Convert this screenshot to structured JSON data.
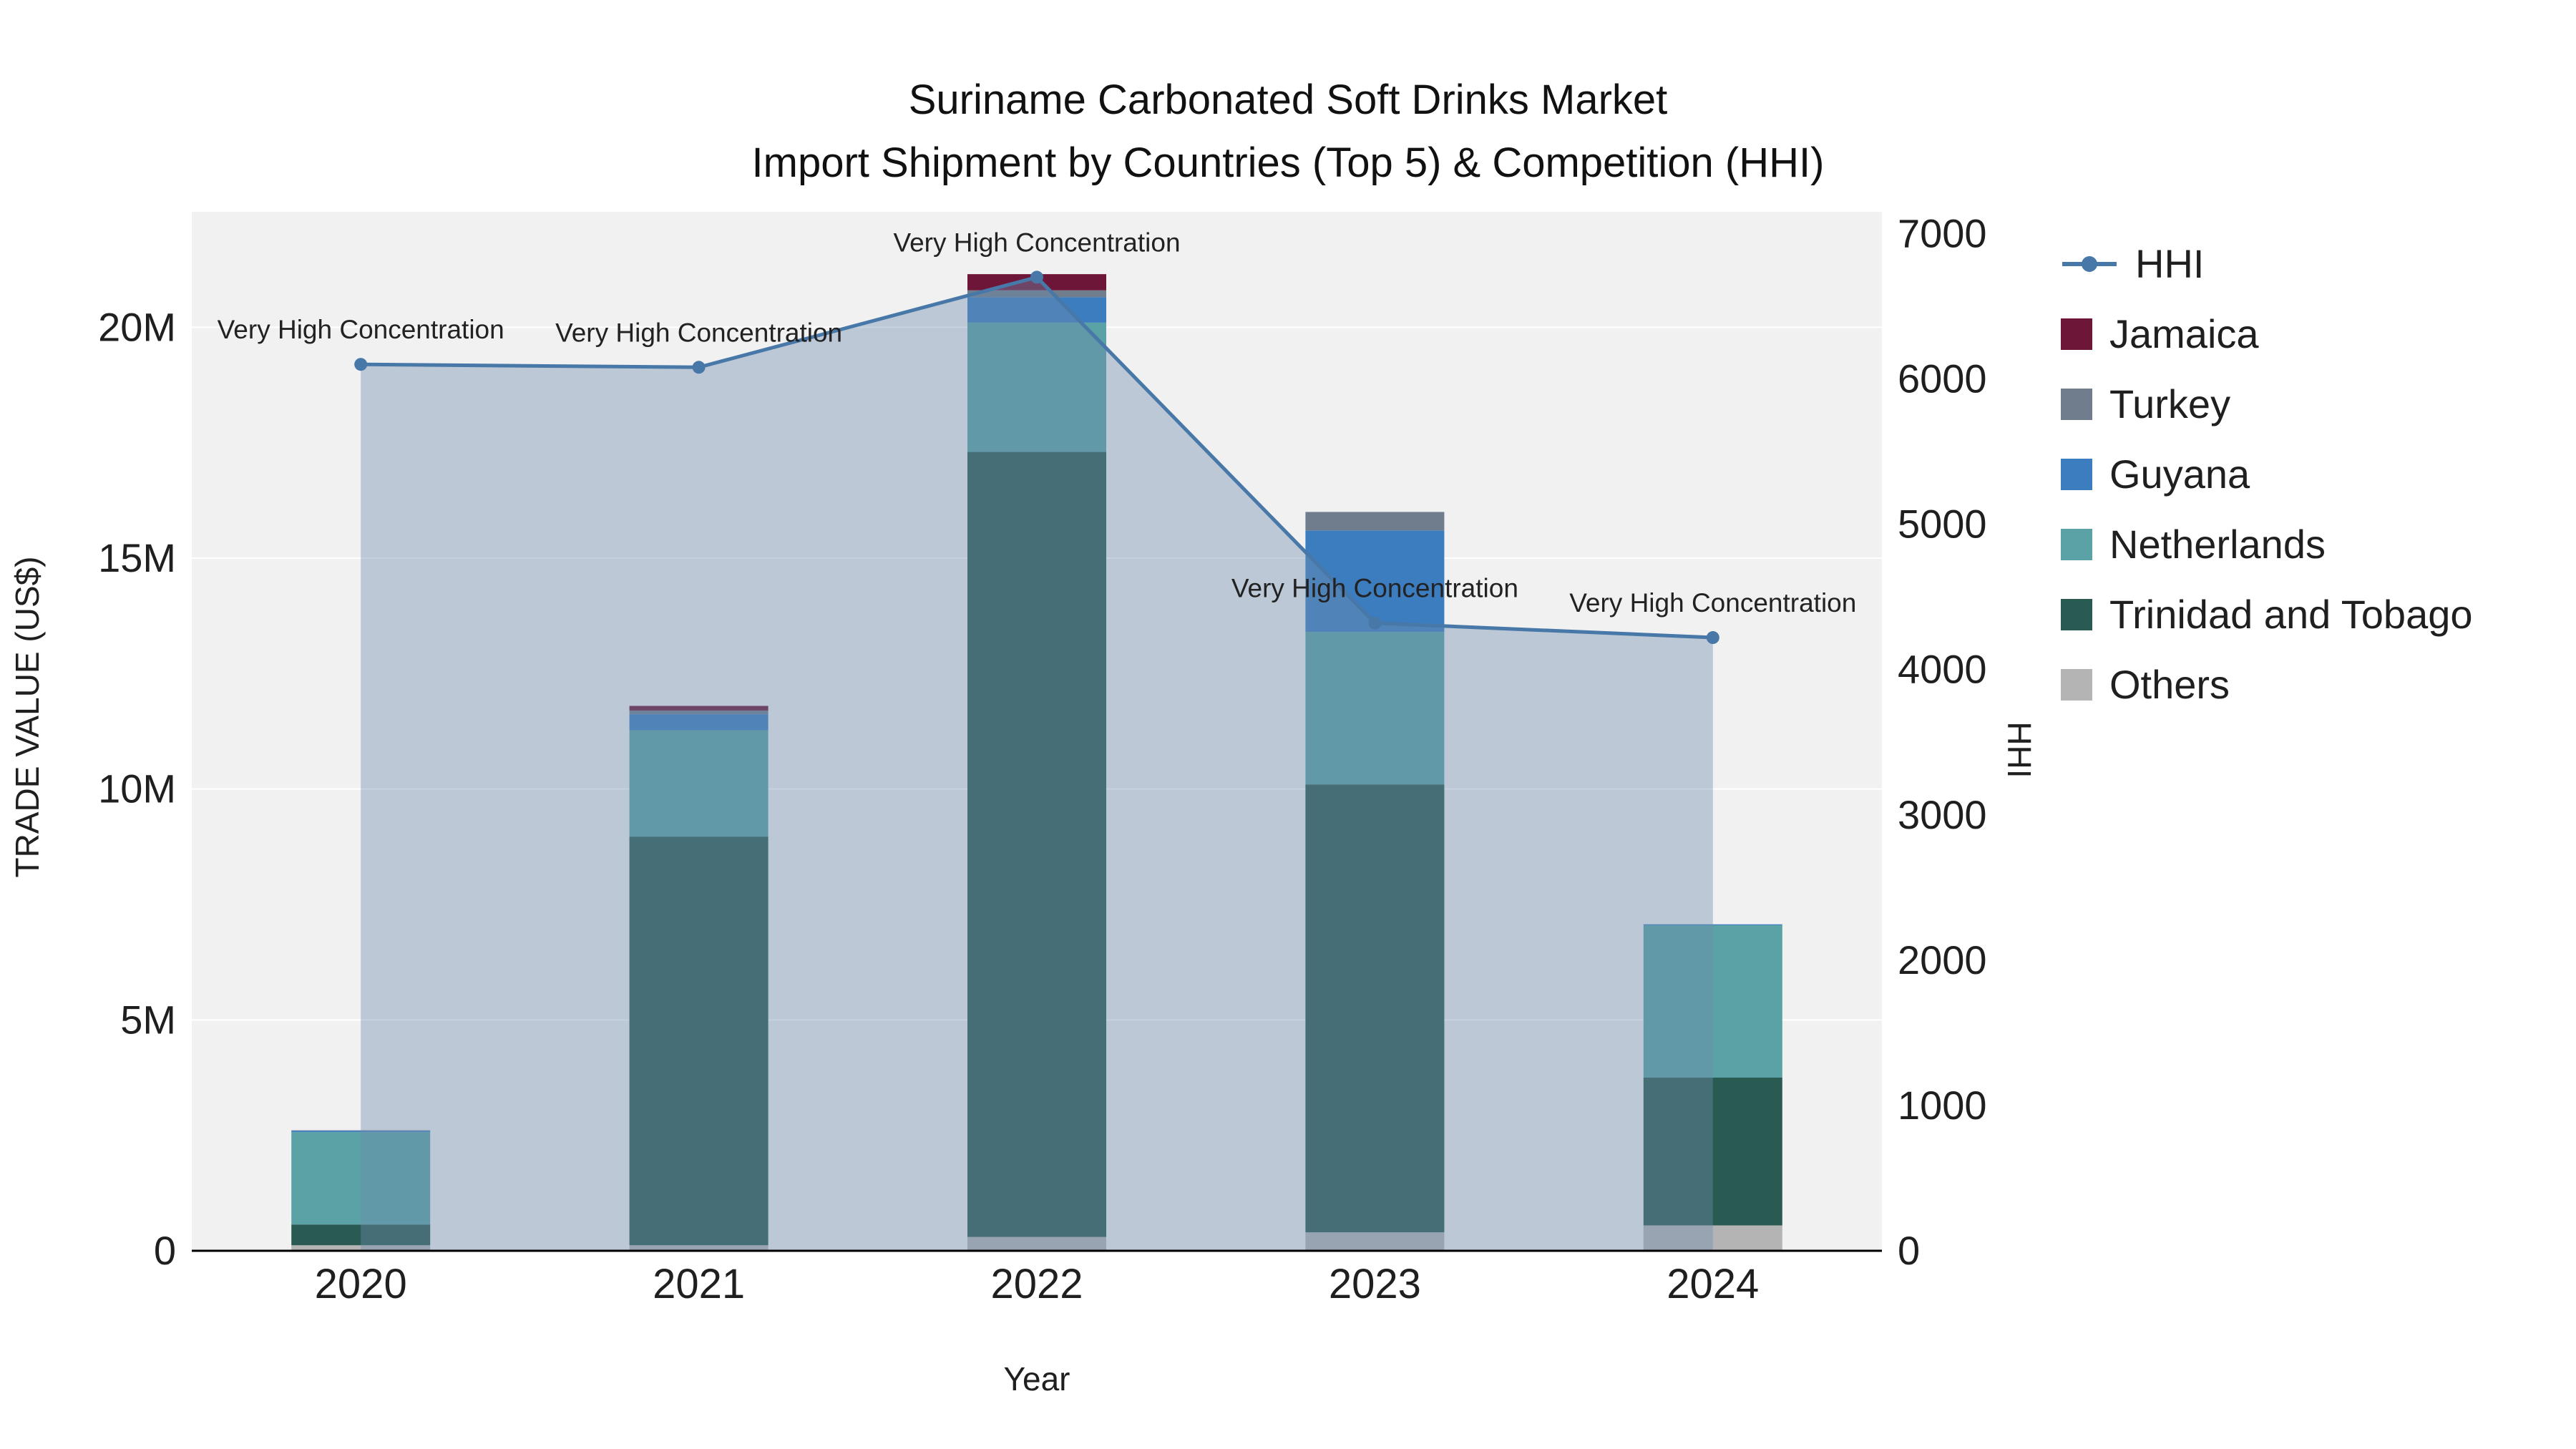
{
  "chart_data": {
    "type": "bar",
    "title": [
      "Suriname Carbonated Soft Drinks Market",
      "Import Shipment by Countries (Top 5) & Competition (HHI)"
    ],
    "xlabel": "Year",
    "ylabel_left": "TRADE VALUE (US$)",
    "ylabel_right": "HHI",
    "unit_left": "US$ (millions)",
    "categories": [
      "2020",
      "2021",
      "2022",
      "2023",
      "2024"
    ],
    "bar_series": [
      {
        "name": "Others",
        "color": "#b4b4b4",
        "values": [
          0.12,
          0.12,
          0.3,
          0.4,
          0.55
        ]
      },
      {
        "name": "Trinidad and Tobago",
        "color": "#2a5b52",
        "values": [
          0.45,
          8.85,
          17.0,
          9.7,
          3.2
        ]
      },
      {
        "name": "Netherlands",
        "color": "#5aa2a6",
        "values": [
          2.0,
          2.3,
          2.8,
          3.3,
          3.3
        ]
      },
      {
        "name": "Guyana",
        "color": "#3c7dbf",
        "values": [
          0.03,
          0.35,
          0.55,
          2.2,
          0.02
        ]
      },
      {
        "name": "Turkey",
        "color": "#6f7d8c",
        "values": [
          0.01,
          0.08,
          0.15,
          0.4,
          0.0
        ]
      },
      {
        "name": "Jamaica",
        "color": "#6e1638",
        "values": [
          0.0,
          0.1,
          0.35,
          0.0,
          0.0
        ]
      }
    ],
    "line_series": {
      "name": "HHI",
      "color": "#4878a8",
      "fill": "rgba(110,140,175,0.40)",
      "values": [
        6100,
        6080,
        6700,
        4320,
        4220
      ]
    },
    "annotations": [
      {
        "x": "2020",
        "text": "Very High Concentration"
      },
      {
        "x": "2021",
        "text": "Very High Concentration"
      },
      {
        "x": "2022",
        "text": "Very High Concentration"
      },
      {
        "x": "2023",
        "text": "Very High Concentration"
      },
      {
        "x": "2024",
        "text": "Very High Concentration"
      }
    ],
    "axes": {
      "left": {
        "min": 0,
        "max": 22.5,
        "ticks": [
          {
            "v": 0,
            "label": "0"
          },
          {
            "v": 5,
            "label": "5M"
          },
          {
            "v": 10,
            "label": "10M"
          },
          {
            "v": 15,
            "label": "15M"
          },
          {
            "v": 20,
            "label": "20M"
          }
        ]
      },
      "right": {
        "min": 0,
        "max": 7150,
        "ticks": [
          0,
          1000,
          2000,
          3000,
          4000,
          5000,
          6000,
          7000
        ]
      }
    },
    "legend": [
      "HHI",
      "Jamaica",
      "Turkey",
      "Guyana",
      "Netherlands",
      "Trinidad and Tobago",
      "Others"
    ]
  }
}
